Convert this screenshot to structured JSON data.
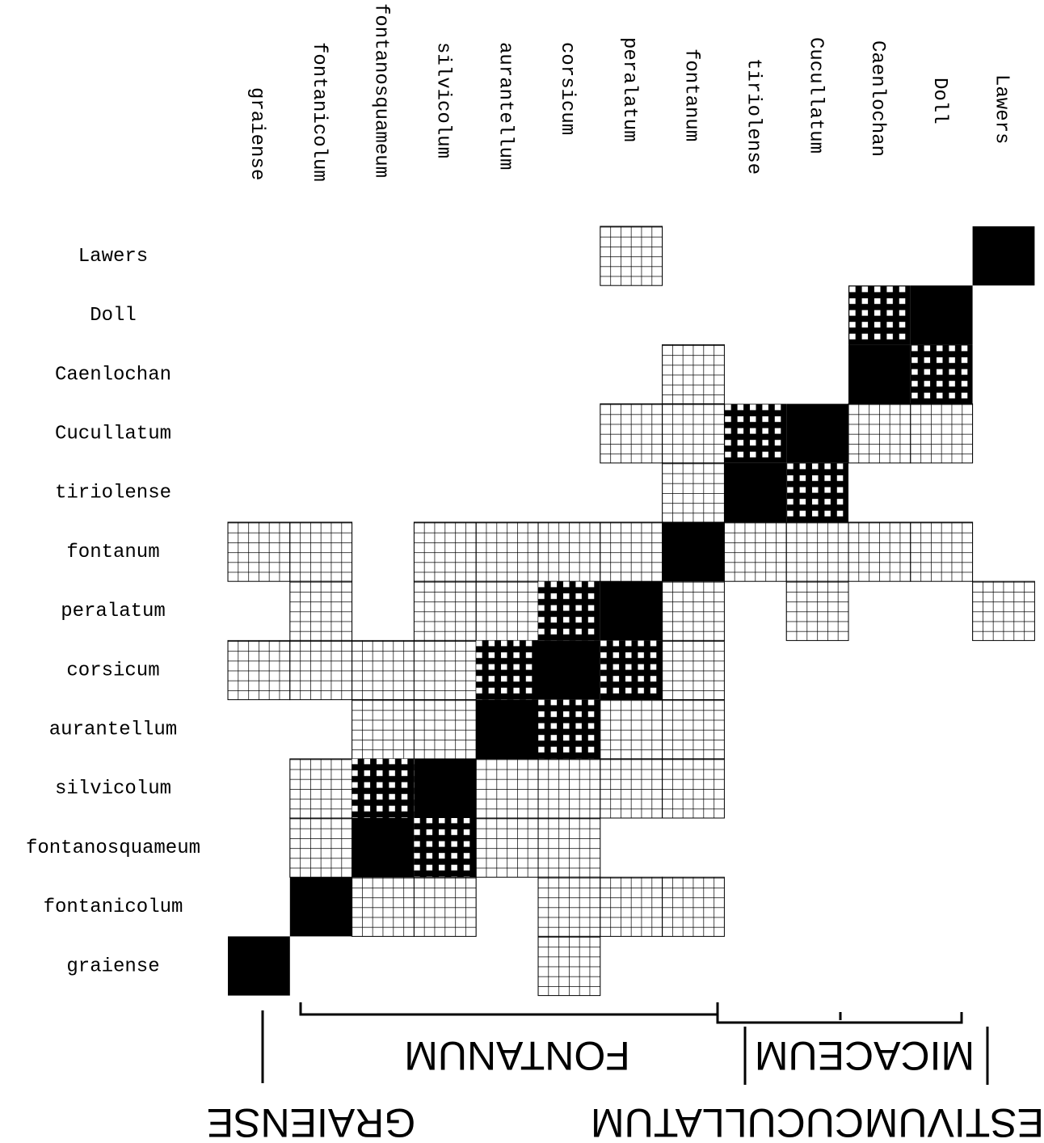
{
  "columns": [
    "graiense",
    "fontanicolum",
    "fontanosquameum",
    "silvicolum",
    "aurantellum",
    "corsicum",
    "peralatum",
    "fontanum",
    "tiriolense",
    "Cucullatum",
    "Caenlochan",
    "Doll",
    "Lawers"
  ],
  "rows": [
    "Lawers",
    "Doll",
    "Caenlochan",
    "Cucullatum",
    "tiriolense",
    "fontanum",
    "peralatum",
    "corsicum",
    "aurantellum",
    "silvicolum",
    "fontanosquameum",
    "fontanicolum",
    "graiense"
  ],
  "groups": {
    "fontanum": "FONTANUM",
    "micaceum": "MICACEUM",
    "graiense": "GRAIENSE",
    "cucullatum": "CUCULLATUM",
    "aestivum": "ESTIVUM"
  }
}
